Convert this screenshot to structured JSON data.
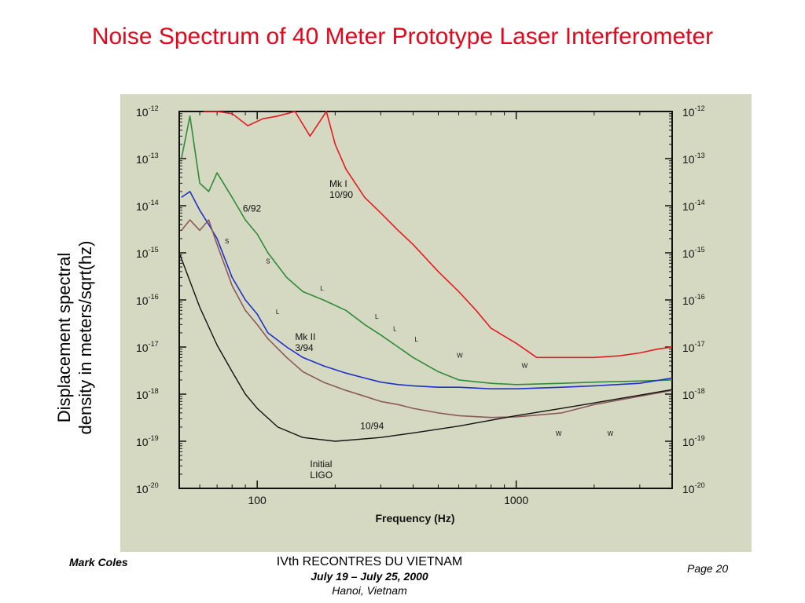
{
  "slide": {
    "title": "Noise Spectrum of 40 Meter Prototype Laser Interferometer",
    "ylabel_line1": "Displacement spectral",
    "ylabel_line2": "density in meters/sqrt(hz)"
  },
  "footer": {
    "author": "Mark Coles",
    "conference": "IVth RECONTRES DU VIETNAM",
    "dates": "July 19 – July 25, 2000",
    "place": "Hanoi, Vietnam",
    "page": "Page 20"
  },
  "colors": {
    "title": "#e4061a",
    "mk1": "#e31b23",
    "green": "#2e8b3a",
    "blue": "#1f2fc9",
    "brown": "#8a5a5a",
    "ligo": "#111111",
    "figure_bg": "#d6d9c2"
  },
  "chart_data": {
    "type": "line",
    "title": "",
    "xlabel": "Frequency (Hz)",
    "ylabel": "",
    "xscale": "log",
    "yscale": "log",
    "xlim": [
      50,
      4000
    ],
    "ylim": [
      1e-20,
      1e-12
    ],
    "grid": false,
    "x_ticks": [
      {
        "value": 100,
        "label": "100"
      },
      {
        "value": 1000,
        "label": "1000"
      }
    ],
    "y_ticks": [
      {
        "value": 1e-12,
        "base": "10",
        "exp": "-12"
      },
      {
        "value": 1e-13,
        "base": "10",
        "exp": "-13"
      },
      {
        "value": 1e-14,
        "base": "10",
        "exp": "-14"
      },
      {
        "value": 1e-15,
        "base": "10",
        "exp": "-15"
      },
      {
        "value": 1e-16,
        "base": "10",
        "exp": "-16"
      },
      {
        "value": 1e-17,
        "base": "10",
        "exp": "-17"
      },
      {
        "value": 1e-18,
        "base": "10",
        "exp": "-18"
      },
      {
        "value": 1e-19,
        "base": "10",
        "exp": "-19"
      },
      {
        "value": 1e-20,
        "base": "10",
        "exp": "-20"
      }
    ],
    "series": [
      {
        "name": "Mk I 10/90",
        "color": "#e31b23",
        "label_lines": [
          "Mk I",
          "10/90"
        ],
        "label_at": [
          190,
          2.5e-14
        ],
        "x": [
          62,
          70,
          80,
          92,
          105,
          120,
          140,
          160,
          185,
          200,
          220,
          260,
          300,
          350,
          400,
          500,
          600,
          700,
          800,
          1000,
          1200,
          1500,
          2000,
          2500,
          3000,
          3500,
          4000
        ],
        "y": [
          1e-12,
          1e-12,
          9e-13,
          5e-13,
          7e-13,
          8e-13,
          1e-12,
          3e-13,
          1e-12,
          2e-13,
          6e-14,
          1.5e-14,
          7e-15,
          3e-15,
          1.5e-15,
          4e-16,
          1.5e-16,
          6e-17,
          2.5e-17,
          1.2e-17,
          6e-18,
          6e-18,
          6e-18,
          6.5e-18,
          7.5e-18,
          9e-18,
          1e-17
        ]
      },
      {
        "name": "6/92",
        "color": "#2e8b3a",
        "label_lines": [
          "6/92"
        ],
        "label_at": [
          88,
          7.5e-15
        ],
        "x": [
          51,
          55,
          60,
          65,
          70,
          80,
          90,
          100,
          110,
          130,
          150,
          180,
          220,
          260,
          300,
          350,
          400,
          500,
          600,
          800,
          1000,
          1500,
          2000,
          3000,
          4000
        ],
        "y": [
          1e-13,
          8e-13,
          3e-14,
          2e-14,
          5e-14,
          1.5e-14,
          5e-15,
          2.5e-15,
          1e-15,
          3e-16,
          1.5e-16,
          1e-16,
          6e-17,
          3e-17,
          1.8e-17,
          1e-17,
          6e-18,
          3e-18,
          2e-18,
          1.7e-18,
          1.6e-18,
          1.7e-18,
          1.8e-18,
          1.9e-18,
          2e-18
        ]
      },
      {
        "name": "Mk II 3/94",
        "color": "#1f2fc9",
        "label_lines": [
          "Mk II",
          "3/94"
        ],
        "label_at": [
          140,
          1.4e-17
        ],
        "x": [
          51,
          55,
          60,
          65,
          70,
          80,
          90,
          100,
          110,
          130,
          150,
          180,
          220,
          260,
          300,
          350,
          400,
          500,
          600,
          800,
          1000,
          1500,
          2000,
          3000,
          4000
        ],
        "y": [
          1.5e-14,
          2e-14,
          8e-15,
          4e-15,
          2e-15,
          3e-16,
          1e-16,
          5e-17,
          2e-17,
          1e-17,
          6e-18,
          4e-18,
          2.8e-18,
          2.2e-18,
          1.8e-18,
          1.6e-18,
          1.5e-18,
          1.4e-18,
          1.4e-18,
          1.3e-18,
          1.3e-18,
          1.4e-18,
          1.5e-18,
          1.7e-18,
          2.2e-18
        ]
      },
      {
        "name": "10/94",
        "color": "#8a5a5a",
        "label_lines": [
          "10/94"
        ],
        "label_at": [
          250,
          1.8e-19
        ],
        "x": [
          51,
          55,
          60,
          65,
          70,
          80,
          90,
          100,
          110,
          130,
          150,
          180,
          220,
          260,
          300,
          350,
          400,
          500,
          600,
          800,
          1000,
          1500,
          2000,
          3000,
          4000
        ],
        "y": [
          3e-15,
          5e-15,
          3e-15,
          5e-15,
          1.5e-15,
          2e-16,
          6e-17,
          3e-17,
          1.5e-17,
          6e-18,
          3e-18,
          1.8e-18,
          1.2e-18,
          9e-19,
          7e-19,
          6e-19,
          5e-19,
          4e-19,
          3.5e-19,
          3.2e-19,
          3.3e-19,
          4e-19,
          6e-19,
          9e-19,
          1.2e-18
        ]
      },
      {
        "name": "Initial LIGO",
        "color": "#111111",
        "label_lines": [
          "Initial",
          "LIGO"
        ],
        "label_at": [
          160,
          2.8e-20
        ],
        "x": [
          50,
          60,
          70,
          80,
          90,
          100,
          120,
          150,
          200,
          300,
          400,
          600,
          800,
          1000,
          1500,
          2000,
          3000,
          4000
        ],
        "y": [
          1e-15,
          7e-17,
          1.1e-17,
          3e-18,
          1e-18,
          5e-19,
          2e-19,
          1.2e-19,
          1e-19,
          1.2e-19,
          1.5e-19,
          2.1e-19,
          2.8e-19,
          3.5e-19,
          5e-19,
          6.5e-19,
          9.5e-19,
          1.25e-18
        ]
      }
    ],
    "annotations": [
      {
        "text": "S",
        "at": [
          75,
          1.6e-15
        ]
      },
      {
        "text": "S",
        "at": [
          108,
          6e-16
        ]
      },
      {
        "text": "L",
        "at": [
          175,
          1.6e-16
        ]
      },
      {
        "text": "L",
        "at": [
          118,
          5e-17
        ]
      },
      {
        "text": "L",
        "at": [
          285,
          4e-17
        ]
      },
      {
        "text": "L",
        "at": [
          335,
          2.2e-17
        ]
      },
      {
        "text": "L",
        "at": [
          405,
          1.3e-17
        ]
      },
      {
        "text": "W",
        "at": [
          590,
          6e-18
        ]
      },
      {
        "text": "W",
        "at": [
          1050,
          3.6e-18
        ]
      },
      {
        "text": "W",
        "at": [
          1420,
          1.3e-19
        ]
      },
      {
        "text": "W",
        "at": [
          2250,
          1.3e-19
        ]
      }
    ]
  }
}
